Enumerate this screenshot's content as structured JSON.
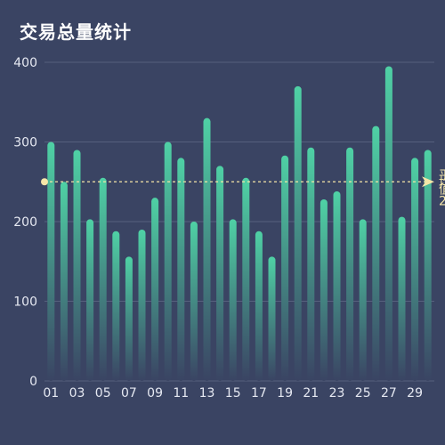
{
  "title": "交易总量统计",
  "colors": {
    "background": "#3a4463",
    "bar_top": "#4fd1a5",
    "bar_bottom": "#3a4463",
    "grid": "#56607d",
    "mark_line": "#f5e6a8"
  },
  "chart_data": {
    "type": "bar",
    "title": "交易总量统计",
    "xlabel": "",
    "ylabel": "",
    "ylim": [
      0,
      400
    ],
    "yticks": [
      0,
      100,
      200,
      300,
      400
    ],
    "grid": true,
    "categories": [
      "01",
      "02",
      "03",
      "04",
      "05",
      "06",
      "07",
      "08",
      "09",
      "10",
      "11",
      "12",
      "13",
      "14",
      "15",
      "16",
      "17",
      "18",
      "19",
      "20",
      "21",
      "22",
      "23",
      "24",
      "25",
      "26",
      "27",
      "28",
      "29",
      "30"
    ],
    "xtick_labels": [
      "01",
      "03",
      "05",
      "07",
      "09",
      "11",
      "13",
      "15",
      "17",
      "19",
      "21",
      "23",
      "25",
      "27",
      "29"
    ],
    "values": [
      300,
      250,
      290,
      203,
      255,
      188,
      156,
      190,
      230,
      300,
      280,
      200,
      330,
      270,
      203,
      255,
      188,
      156,
      283,
      370,
      293,
      228,
      238,
      293,
      203,
      320,
      395,
      206,
      280,
      290
    ],
    "mark_line": {
      "value": 250,
      "label": "平均值",
      "style": "dashed"
    }
  }
}
